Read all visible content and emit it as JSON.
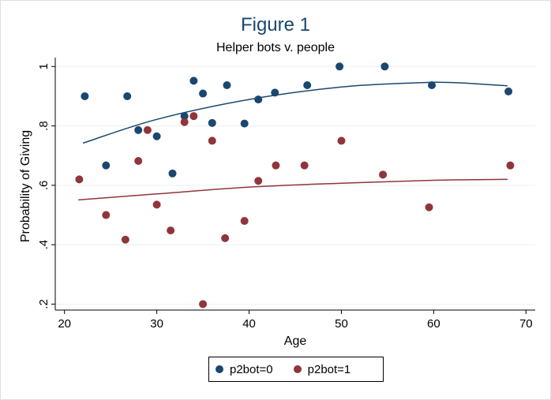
{
  "chart_data": {
    "type": "scatter",
    "title": "Figure 1",
    "subtitle": "Helper bots v. people",
    "xlabel": "Age",
    "ylabel": "Probability of Giving",
    "xlim": [
      19,
      71
    ],
    "ylim": [
      0.18,
      1.03
    ],
    "xticks": [
      "20",
      "30",
      "40",
      "50",
      "60",
      "70"
    ],
    "xtick_values": [
      20,
      30,
      40,
      50,
      60,
      70
    ],
    "yticks": [
      ".2",
      ".4",
      ".6",
      ".8",
      "1"
    ],
    "ytick_values": [
      0.2,
      0.4,
      0.6,
      0.8,
      1.0
    ],
    "grid": true,
    "legend_placement": "bottom",
    "series": [
      {
        "name": "p2bot=0",
        "color": "#1a476f",
        "points": [
          [
            22.2,
            0.9
          ],
          [
            24.5,
            0.667
          ],
          [
            26.8,
            0.9
          ],
          [
            28,
            0.786
          ],
          [
            30,
            0.765
          ],
          [
            31.7,
            0.64
          ],
          [
            33,
            0.833
          ],
          [
            34,
            0.952
          ],
          [
            35,
            0.909
          ],
          [
            36,
            0.81
          ],
          [
            37.6,
            0.937
          ],
          [
            39.5,
            0.808
          ],
          [
            41,
            0.889
          ],
          [
            42.8,
            0.912
          ],
          [
            46.3,
            0.937
          ],
          [
            49.8,
            1.0
          ],
          [
            54.7,
            1.0
          ],
          [
            59.8,
            0.937
          ],
          [
            68.1,
            0.916
          ]
        ],
        "fit": [
          [
            22,
            0.742
          ],
          [
            30,
            0.822
          ],
          [
            40,
            0.889
          ],
          [
            50,
            0.931
          ],
          [
            58,
            0.945
          ],
          [
            62,
            0.946
          ],
          [
            68,
            0.935
          ]
        ]
      },
      {
        "name": "p2bot=1",
        "color": "#90353b",
        "points": [
          [
            21.6,
            0.62
          ],
          [
            24.5,
            0.5
          ],
          [
            26.6,
            0.417
          ],
          [
            28,
            0.682
          ],
          [
            29,
            0.786
          ],
          [
            30,
            0.535
          ],
          [
            31.5,
            0.448
          ],
          [
            33,
            0.813
          ],
          [
            34,
            0.833
          ],
          [
            35,
            0.2
          ],
          [
            36,
            0.75
          ],
          [
            37.4,
            0.422
          ],
          [
            39.5,
            0.48
          ],
          [
            41,
            0.615
          ],
          [
            42.9,
            0.667
          ],
          [
            46,
            0.667
          ],
          [
            50,
            0.75
          ],
          [
            54.5,
            0.636
          ],
          [
            59.5,
            0.526
          ],
          [
            68.3,
            0.667
          ]
        ],
        "fit": [
          [
            21.5,
            0.551
          ],
          [
            30,
            0.571
          ],
          [
            40,
            0.594
          ],
          [
            50,
            0.607
          ],
          [
            60,
            0.617
          ],
          [
            68,
            0.62
          ]
        ]
      }
    ]
  }
}
